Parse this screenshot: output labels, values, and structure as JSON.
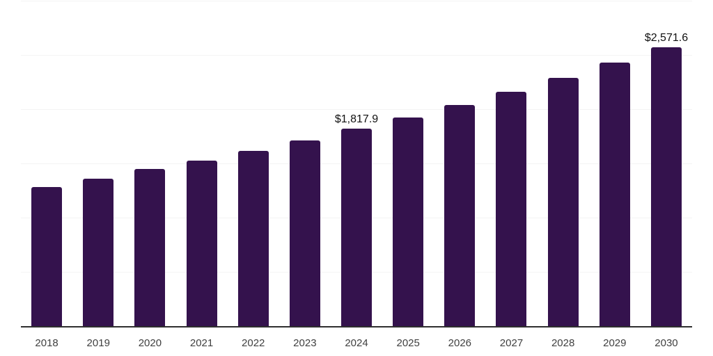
{
  "chart_data": {
    "type": "bar",
    "title": "",
    "xlabel": "",
    "ylabel": "",
    "categories": [
      "2018",
      "2019",
      "2020",
      "2021",
      "2022",
      "2023",
      "2024",
      "2025",
      "2026",
      "2027",
      "2028",
      "2029",
      "2030"
    ],
    "values": [
      1280.4,
      1357.0,
      1446.6,
      1525.9,
      1617.3,
      1709.8,
      1817.9,
      1926.1,
      2040.7,
      2162.1,
      2290.8,
      2427.2,
      2571.6
    ],
    "data_labels": [
      "",
      "",
      "",
      "",
      "",
      "",
      "$1,817.9",
      "",
      "",
      "",
      "",
      "",
      "$2,571.6"
    ],
    "ylim": [
      0,
      3000
    ],
    "gridline_step": 500,
    "grid": true,
    "legend": false,
    "colors": {
      "bar": "#34124d",
      "axis_line": "#2e2e2e",
      "gridline": "#f4f4f4",
      "data_label_text": "#111111",
      "tick_text": "#404040",
      "background": "#ffffff"
    }
  }
}
